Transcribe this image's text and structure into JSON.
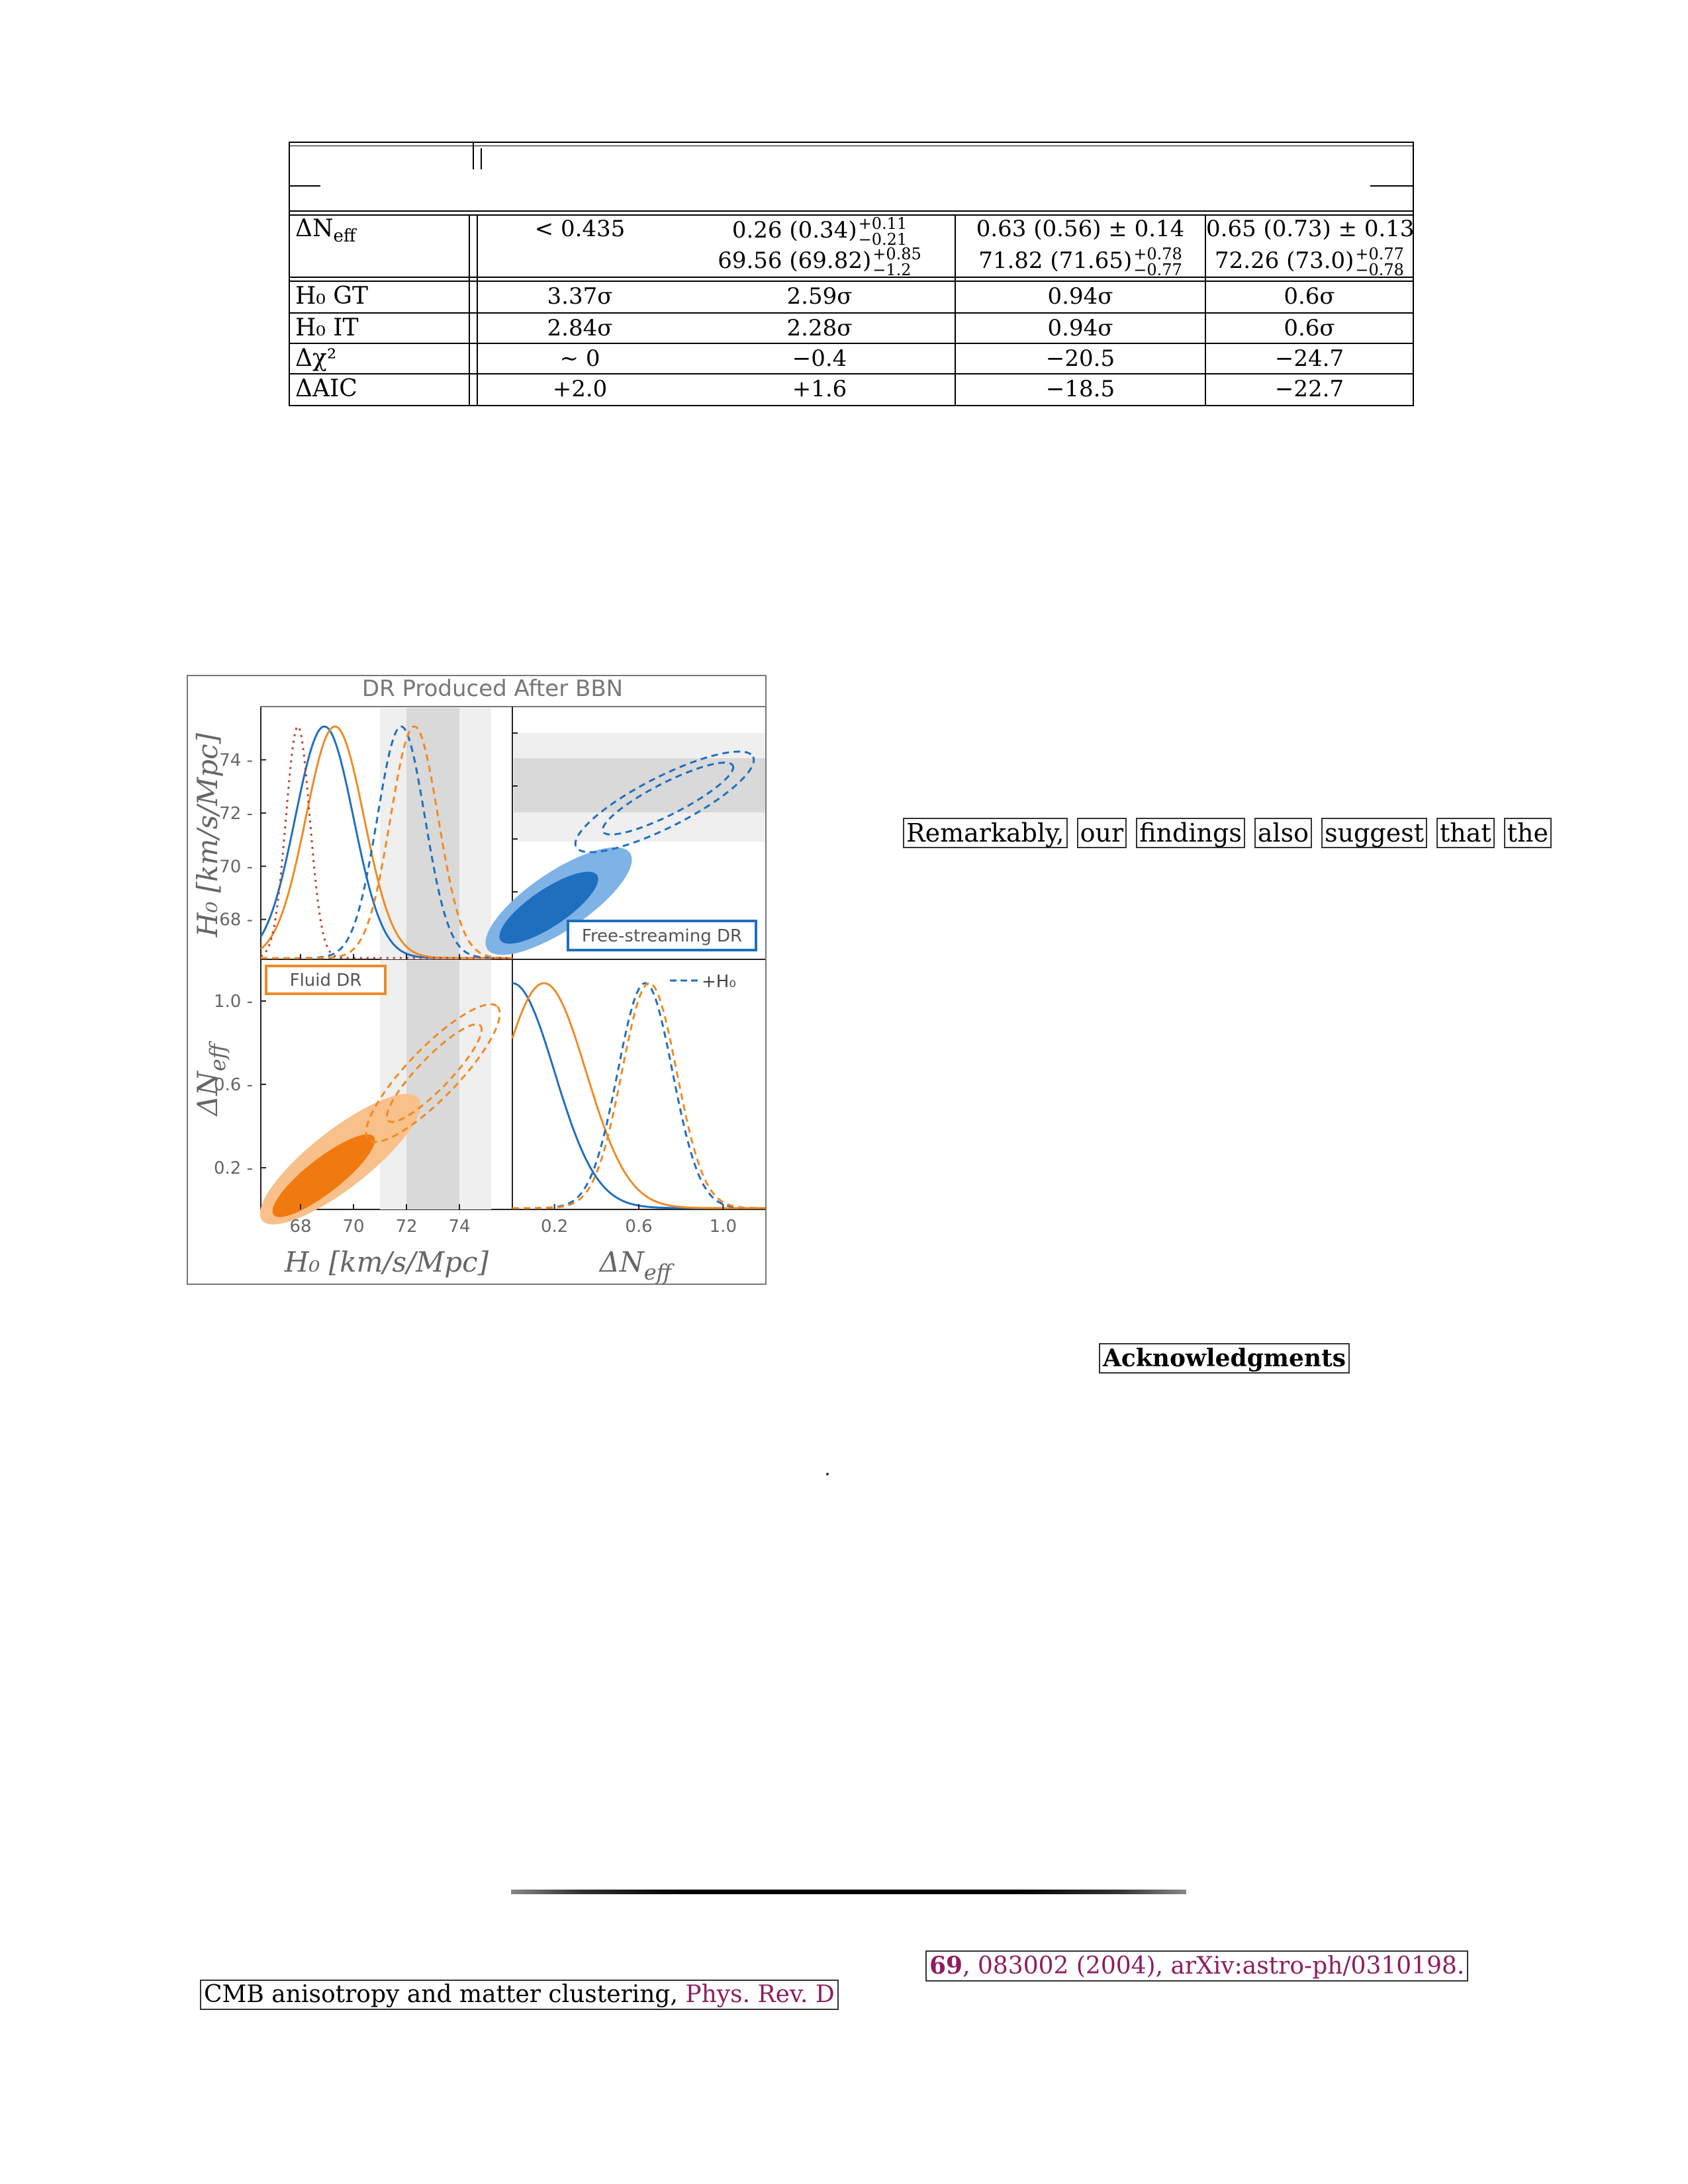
{
  "table": {
    "rows": [
      {
        "label_html": "ΔN<sub style=\"font-size:26px\">eff</sub>",
        "cells": [
          {
            "line1": "< 0.435",
            "line2": ""
          },
          {
            "line1": "0.26 (0.34)",
            "pm1_up": "+0.11",
            "pm1_dn": "−0.21",
            "line2": "69.56 (69.82)",
            "pm2_up": "+0.85",
            "pm2_dn": "−1.2"
          },
          {
            "line1": "0.63 (0.56) ± 0.14",
            "line2": "71.82 (71.65)",
            "pm2_up": "+0.78",
            "pm2_dn": "−0.77"
          },
          {
            "line1": "0.65 (0.73) ± 0.13",
            "line2": "72.26 (73.0)",
            "pm2_up": "+0.77",
            "pm2_dn": "−0.78"
          }
        ]
      },
      {
        "label": "H₀ GT",
        "cells": [
          "3.37σ",
          "2.59σ",
          "0.94σ",
          "0.6σ"
        ]
      },
      {
        "label": "H₀ IT",
        "cells": [
          "2.84σ",
          "2.28σ",
          "0.94σ",
          "0.6σ"
        ]
      },
      {
        "label": "Δχ²",
        "cells": [
          "∼ 0",
          "−0.4",
          "−20.5",
          "−24.7"
        ]
      },
      {
        "label": "ΔAIC",
        "cells": [
          "+2.0",
          "+1.6",
          "−18.5",
          "−22.7"
        ]
      }
    ]
  },
  "figure": {
    "title": "DR Produced After BBN",
    "x_label_left": "H₀ [km/s/Mpc]",
    "x_label_right": "ΔN",
    "x_label_right_sub": "eff",
    "y_label_top": "H₀ [km/s/Mpc]",
    "y_label_bottom": "ΔN",
    "y_label_bottom_sub": "eff",
    "legend_free_streaming": "Free-streaming DR",
    "legend_fluid": "Fluid DR",
    "legend_h0": "+H₀",
    "colors": {
      "blue": "#1f6fbf",
      "orange": "#f08a24",
      "red_dotted": "#c0392b",
      "band_light": "#efefef",
      "band_dark": "#d9d9d9"
    }
  },
  "chart_data": [
    {
      "type": "line",
      "title": "DR Produced After BBN",
      "panel": "top-left (H0 1D posterior)",
      "xlabel": "",
      "ylabel": "H₀ [km/s/Mpc]",
      "yticks": [
        68,
        70,
        72,
        74
      ],
      "xlim": [
        66.5,
        76
      ],
      "series": [
        {
          "name": "Free-streaming DR",
          "style": "solid",
          "color": "#1f6fbf",
          "peak": 68.9
        },
        {
          "name": "Fluid DR",
          "style": "solid",
          "color": "#f08a24",
          "peak": 69.3
        },
        {
          "name": "Free-streaming DR +H₀",
          "style": "dashed",
          "color": "#1f6fbf",
          "peak": 71.8
        },
        {
          "name": "Fluid DR +H₀",
          "style": "dashed",
          "color": "#f08a24",
          "peak": 72.3
        },
        {
          "name": "",
          "style": "dotted",
          "color": "#c0392b",
          "peak": 67.9
        }
      ],
      "bands": [
        {
          "range": [
            71,
            75
          ],
          "shade": "light"
        },
        {
          "range": [
            72,
            74
          ],
          "shade": "dark"
        }
      ]
    },
    {
      "type": "scatter",
      "panel": "top-right (ΔNeff vs H0 contours)",
      "legend": "Free-streaming DR",
      "xlim": [
        0,
        1.2
      ],
      "ylim": [
        66.5,
        76
      ],
      "bands": [
        {
          "range": [
            71,
            75
          ],
          "shade": "light"
        },
        {
          "range": [
            72,
            74
          ],
          "shade": "dark"
        }
      ]
    },
    {
      "type": "scatter",
      "panel": "bottom-left (H0 vs ΔNeff contours)",
      "legend": "Fluid DR",
      "xlabel": "H₀ [km/s/Mpc]",
      "ylabel": "ΔNeff",
      "xticks": [
        68,
        70,
        72,
        74
      ],
      "yticks": [
        0.2,
        0.6,
        1.0
      ],
      "xlim": [
        66.5,
        76
      ],
      "ylim": [
        0,
        1.2
      ],
      "bands": [
        {
          "range": [
            71,
            75
          ],
          "shade": "light"
        },
        {
          "range": [
            72,
            74
          ],
          "shade": "dark"
        }
      ]
    },
    {
      "type": "line",
      "panel": "bottom-right (ΔNeff 1D posterior)",
      "xlabel": "ΔNeff",
      "xticks": [
        0.2,
        0.6,
        1.0
      ],
      "xlim": [
        0,
        1.2
      ],
      "legend": "+H₀",
      "series": [
        {
          "name": "Free-streaming DR",
          "style": "solid",
          "color": "#1f6fbf",
          "peak": 0.0
        },
        {
          "name": "Fluid DR",
          "style": "solid",
          "color": "#f08a24",
          "peak": 0.15
        },
        {
          "name": "Free-streaming DR +H₀",
          "style": "dashed",
          "color": "#1f6fbf",
          "peak": 0.63
        },
        {
          "name": "Fluid DR +H₀",
          "style": "dashed",
          "color": "#f08a24",
          "peak": 0.65
        }
      ]
    }
  ],
  "text": {
    "remark_words": [
      "Remarkably,",
      "our",
      "findings",
      "also",
      "suggest",
      "that",
      "the"
    ],
    "ack_heading": "Acknowledgments",
    "ref_tail_bold": "69",
    "ref_tail": ", 083002 (2004), arXiv:astro-ph/0310198.",
    "ref_head": "CMB anisotropy and matter clustering, ",
    "ref_head_journal": "Phys. Rev. D"
  }
}
